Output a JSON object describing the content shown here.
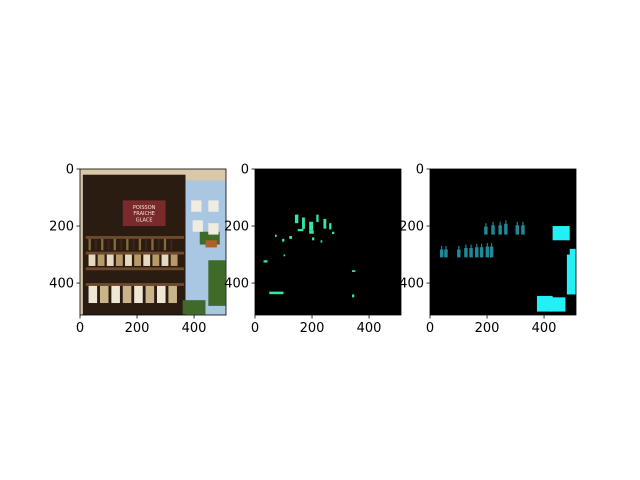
{
  "chart_data": [
    {
      "type": "image",
      "panel": "photo",
      "content": "storefront photo",
      "xlim": [
        0,
        512
      ],
      "ylim": [
        512,
        0
      ],
      "xticks": [
        0,
        200,
        400
      ],
      "yticks": [
        0,
        200,
        400
      ],
      "colors": {
        "background": "#2b1c12",
        "door": "#a9c6e2",
        "wall": "#d9c9a8",
        "shelf": "#6b4a2e",
        "sign": "#7a2a2a",
        "plant": "#3f6a2a"
      },
      "sign_text": [
        "POISSON",
        "FRAICHE",
        "GLACE"
      ]
    },
    {
      "type": "image",
      "panel": "mask",
      "content": "sparse mask",
      "xlim": [
        0,
        512
      ],
      "ylim": [
        512,
        0
      ],
      "xticks": [
        0,
        200,
        400
      ],
      "yticks": [
        0,
        200,
        400
      ],
      "colors": {
        "background": "#000000",
        "mask": "#33e8a0"
      }
    },
    {
      "type": "image",
      "panel": "mask",
      "content": "bottle and pot mask",
      "xlim": [
        0,
        512
      ],
      "ylim": [
        512,
        0
      ],
      "xticks": [
        0,
        200,
        400
      ],
      "yticks": [
        0,
        200,
        400
      ],
      "colors": {
        "background": "#000000",
        "bottles": "#1f8a9a",
        "pots": "#22f0f5"
      }
    }
  ]
}
